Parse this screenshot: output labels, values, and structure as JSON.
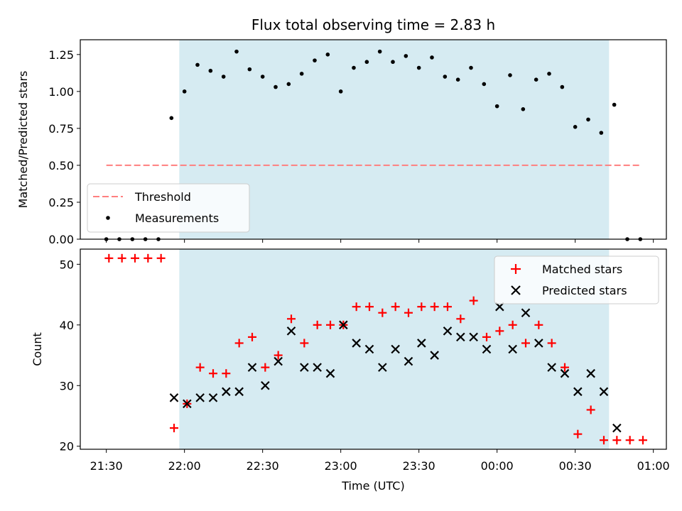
{
  "chart_data": [
    {
      "type": "scatter",
      "title": "Flux total observing time = 2.83 h",
      "ylabel": "Matched/Predicted stars",
      "xlabel": "",
      "ylim": [
        0,
        1.35
      ],
      "yticks": [
        "0.00",
        "0.25",
        "0.50",
        "0.75",
        "1.00",
        "1.25"
      ],
      "ytick_values": [
        0,
        0.25,
        0.5,
        0.75,
        1.0,
        1.25
      ],
      "observing_window_minutes": [
        28,
        193
      ],
      "threshold": {
        "name": "Threshold",
        "value": 0.5,
        "x_range": [
          0,
          205
        ],
        "color": "#ff7f7f"
      },
      "series": [
        {
          "name": "Measurements",
          "color": "#000000",
          "x": [
            0,
            5,
            10,
            15,
            20,
            25,
            30,
            35,
            40,
            45,
            50,
            55,
            60,
            65,
            70,
            75,
            80,
            85,
            90,
            95,
            100,
            105,
            110,
            115,
            120,
            125,
            130,
            135,
            140,
            145,
            150,
            155,
            160,
            165,
            170,
            175,
            180,
            185,
            190,
            195,
            200,
            205
          ],
          "y": [
            0,
            0,
            0,
            0,
            0,
            0.82,
            1.0,
            1.18,
            1.14,
            1.1,
            1.27,
            1.15,
            1.1,
            1.03,
            1.05,
            1.12,
            1.21,
            1.25,
            1.0,
            1.16,
            1.2,
            1.27,
            1.2,
            1.24,
            1.16,
            1.23,
            1.1,
            1.08,
            1.16,
            1.05,
            0.9,
            1.11,
            0.88,
            1.08,
            1.12,
            1.03,
            0.76,
            0.81,
            0.72,
            0.91,
            0,
            0
          ]
        }
      ],
      "legend": {
        "location": "lower-left",
        "entries": [
          "Threshold",
          "Measurements"
        ]
      }
    },
    {
      "type": "scatter",
      "title": "",
      "ylabel": "Count",
      "xlabel": "Time (UTC)",
      "ylim": [
        19.5,
        52.5
      ],
      "yticks": [
        "20",
        "30",
        "40",
        "50"
      ],
      "ytick_values": [
        20,
        30,
        40,
        50
      ],
      "xlim_minutes": [
        -10,
        215
      ],
      "xticks": [
        "21:30",
        "22:00",
        "22:30",
        "23:00",
        "23:30",
        "00:00",
        "00:30",
        "01:00"
      ],
      "xtick_minutes": [
        0,
        30,
        60,
        90,
        120,
        150,
        180,
        210
      ],
      "observing_window_minutes": [
        28,
        193
      ],
      "series": [
        {
          "name": "Matched stars",
          "marker": "plus",
          "color": "#ff0000",
          "x": [
            1,
            6,
            11,
            16,
            21,
            26,
            31,
            36,
            41,
            46,
            51,
            56,
            61,
            66,
            71,
            76,
            81,
            86,
            91,
            96,
            101,
            106,
            111,
            116,
            121,
            126,
            131,
            136,
            141,
            146,
            151,
            156,
            161,
            166,
            171,
            176,
            181,
            186,
            191,
            196,
            201,
            206
          ],
          "y": [
            51,
            51,
            51,
            51,
            51,
            23,
            27,
            33,
            32,
            32,
            37,
            38,
            33,
            35,
            41,
            37,
            40,
            40,
            40,
            43,
            43,
            42,
            43,
            42,
            43,
            43,
            43,
            41,
            44,
            38,
            39,
            40,
            37,
            40,
            37,
            33,
            22,
            26,
            21,
            21,
            21,
            21
          ]
        },
        {
          "name": "Predicted stars",
          "marker": "x",
          "color": "#000000",
          "x": [
            26,
            31,
            36,
            41,
            46,
            51,
            56,
            61,
            66,
            71,
            76,
            81,
            86,
            91,
            96,
            101,
            106,
            111,
            116,
            121,
            126,
            131,
            136,
            141,
            146,
            151,
            156,
            161,
            166,
            171,
            176,
            181,
            186,
            191,
            196
          ],
          "y": [
            28,
            27,
            28,
            28,
            29,
            29,
            33,
            30,
            34,
            39,
            33,
            33,
            32,
            40,
            37,
            36,
            33,
            36,
            34,
            37,
            35,
            39,
            38,
            38,
            36,
            43,
            36,
            42,
            37,
            33,
            32,
            29,
            32,
            29,
            23
          ]
        }
      ],
      "legend": {
        "location": "upper-right",
        "entries": [
          "Matched stars",
          "Predicted stars"
        ]
      }
    }
  ]
}
